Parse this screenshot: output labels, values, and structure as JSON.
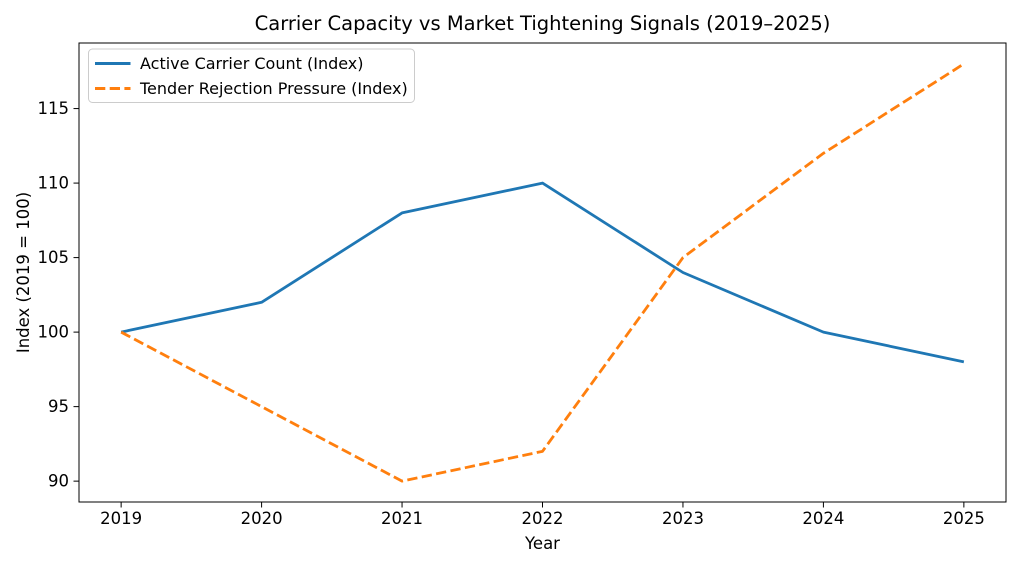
{
  "figure": {
    "background": "#ffffff"
  },
  "chart_data": {
    "type": "line",
    "title": "Carrier Capacity vs Market Tightening Signals (2019–2025)",
    "xlabel": "Year",
    "ylabel": "Index (2019 = 100)",
    "x": [
      2019,
      2020,
      2021,
      2022,
      2023,
      2024,
      2025
    ],
    "x_tick_labels": [
      "2019",
      "2020",
      "2021",
      "2022",
      "2023",
      "2024",
      "2025"
    ],
    "y_ticks": [
      90,
      95,
      100,
      105,
      110,
      115
    ],
    "xlim": [
      2018.7,
      2025.3
    ],
    "ylim": [
      88.6,
      119.4
    ],
    "grid": false,
    "legend_position": "upper-left",
    "series": [
      {
        "name": "Active Carrier Count (Index)",
        "values": [
          100,
          102,
          108,
          110,
          104,
          100,
          98
        ],
        "color": "#1f77b4",
        "style": "solid"
      },
      {
        "name": "Tender Rejection Pressure (Index)",
        "values": [
          100,
          95,
          90,
          92,
          105,
          112,
          118
        ],
        "color": "#ff7f0e",
        "style": "dashed"
      }
    ],
    "axis_color": "#000000",
    "legend_border_color": "#cccccc",
    "legend_background": "#ffffff"
  }
}
